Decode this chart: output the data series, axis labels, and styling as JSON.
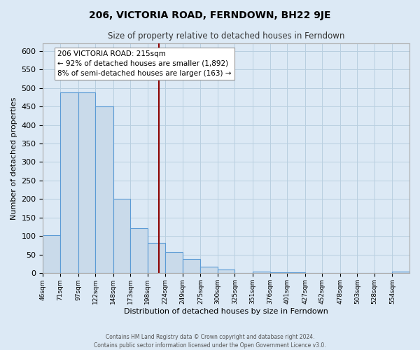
{
  "title": "206, VICTORIA ROAD, FERNDOWN, BH22 9JE",
  "subtitle": "Size of property relative to detached houses in Ferndown",
  "xlabel": "Distribution of detached houses by size in Ferndown",
  "ylabel": "Number of detached properties",
  "bin_labels": [
    "46sqm",
    "71sqm",
    "97sqm",
    "122sqm",
    "148sqm",
    "173sqm",
    "198sqm",
    "224sqm",
    "249sqm",
    "275sqm",
    "300sqm",
    "325sqm",
    "351sqm",
    "376sqm",
    "401sqm",
    "427sqm",
    "452sqm",
    "478sqm",
    "503sqm",
    "528sqm",
    "554sqm"
  ],
  "bin_edges": [
    46,
    71,
    97,
    122,
    148,
    173,
    198,
    224,
    249,
    275,
    300,
    325,
    351,
    376,
    401,
    427,
    452,
    478,
    503,
    528,
    554,
    579
  ],
  "bar_heights": [
    103,
    487,
    487,
    450,
    200,
    122,
    82,
    58,
    38,
    17,
    10,
    0,
    5,
    3,
    3,
    1,
    0,
    0,
    0,
    0,
    5
  ],
  "bar_color": "#c9daea",
  "bar_edge_color": "#5b9bd5",
  "bar_edge_width": 0.8,
  "grid_color": "#b8cfe0",
  "bg_color": "#dce9f5",
  "property_size": 215,
  "vline_color": "#8b0000",
  "vline_x": 215,
  "annotation_title": "206 VICTORIA ROAD: 215sqm",
  "annotation_line1": "← 92% of detached houses are smaller (1,892)",
  "annotation_line2": "8% of semi-detached houses are larger (163) →",
  "annotation_box_color": "#ffffff",
  "ylim": [
    0,
    620
  ],
  "yticks": [
    0,
    50,
    100,
    150,
    200,
    250,
    300,
    350,
    400,
    450,
    500,
    550,
    600
  ],
  "footer_line1": "Contains HM Land Registry data © Crown copyright and database right 2024.",
  "footer_line2": "Contains public sector information licensed under the Open Government Licence v3.0."
}
